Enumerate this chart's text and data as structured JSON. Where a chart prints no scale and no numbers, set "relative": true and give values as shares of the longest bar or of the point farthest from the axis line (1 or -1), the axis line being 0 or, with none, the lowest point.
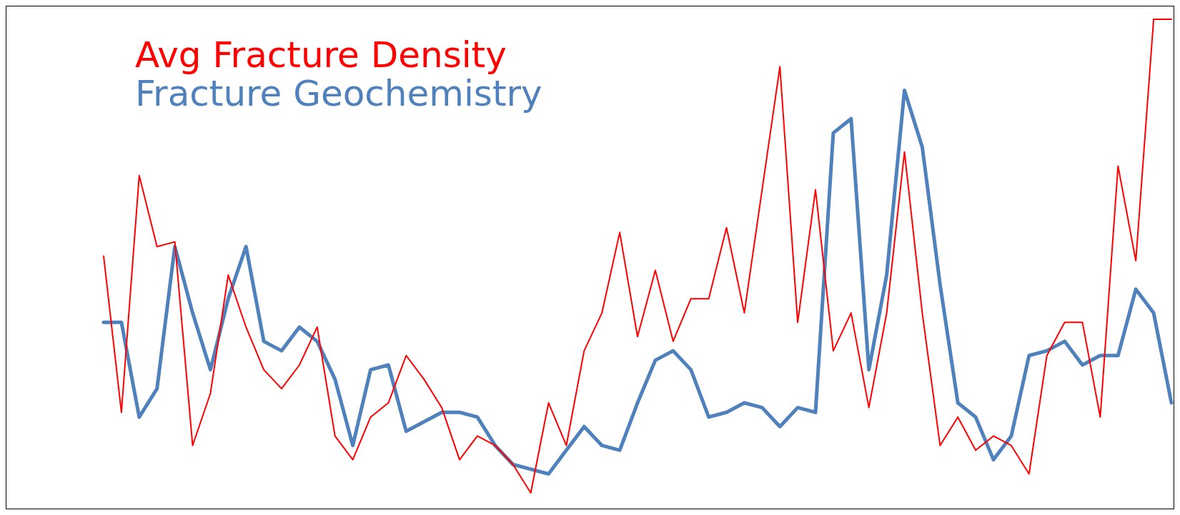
{
  "chart_data": {
    "type": "line",
    "relative": true,
    "legend": "top left",
    "grid": false,
    "marker": "none",
    "line_style": "solid",
    "categories": [
      null,
      null,
      null,
      null,
      null,
      null,
      null,
      null,
      null,
      null,
      null,
      null,
      null,
      null,
      null,
      null,
      null,
      null,
      null,
      null,
      null,
      null,
      null,
      null,
      null,
      null,
      null,
      null,
      null,
      null,
      null,
      null,
      null,
      null,
      null,
      null,
      null,
      null,
      null,
      null,
      null,
      null,
      null,
      null,
      null,
      null,
      null,
      null,
      null,
      null,
      null,
      null,
      null,
      null,
      null,
      null,
      null,
      null,
      null,
      null,
      null
    ],
    "series": [
      {
        "name": "Avg Fracture Density",
        "color": "#ff0000",
        "values": [
          0.5,
          0.17,
          0.67,
          0.52,
          0.53,
          0.1,
          0.21,
          0.46,
          0.35,
          0.26,
          0.22,
          0.27,
          0.35,
          0.12,
          0.07,
          0.16,
          0.19,
          0.29,
          0.24,
          0.18,
          0.07,
          0.12,
          0.1,
          0.06,
          0,
          0.19,
          0.1,
          0.3,
          0.38,
          0.55,
          0.33,
          0.47,
          0.32,
          0.41,
          0.41,
          0.56,
          0.38,
          0.64,
          0.9,
          0.36,
          0.64,
          0.3,
          0.38,
          0.18,
          0.38,
          0.72,
          0.38,
          0.1,
          0.16,
          0.09,
          0.12,
          0.1,
          0.04,
          0.29,
          0.36,
          0.36,
          0.16,
          0.69,
          0.49,
          1,
          1
        ]
      },
      {
        "name": "Fracture Geochemistry",
        "color": "#4f81bd",
        "values": [
          0.36,
          0.36,
          0.16,
          0.22,
          0.52,
          0.38,
          0.26,
          0.41,
          0.52,
          0.32,
          0.3,
          0.35,
          0.32,
          0.24,
          0.1,
          0.26,
          0.27,
          0.13,
          0.15,
          0.17,
          0.17,
          0.16,
          0.1,
          0.06,
          0.05,
          0.04,
          0.09,
          0.14,
          0.1,
          0.09,
          0.19,
          0.28,
          0.3,
          0.26,
          0.16,
          0.17,
          0.19,
          0.18,
          0.14,
          0.18,
          0.17,
          0.76,
          0.79,
          0.26,
          0.46,
          0.85,
          0.73,
          0.44,
          0.19,
          0.16,
          0.07,
          0.12,
          0.29,
          0.3,
          0.32,
          0.27,
          0.29,
          0.29,
          0.43,
          0.38,
          0.19
        ]
      }
    ]
  }
}
